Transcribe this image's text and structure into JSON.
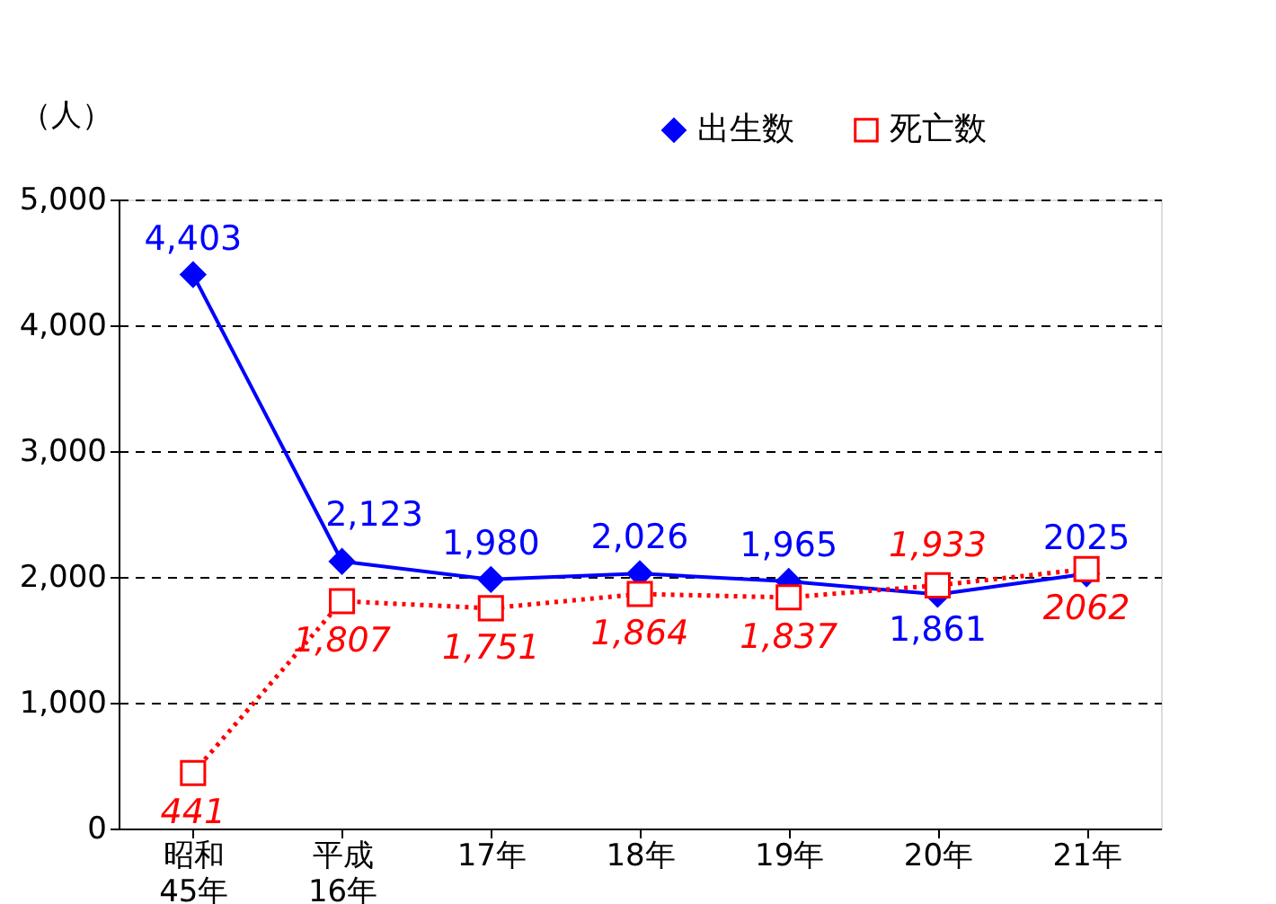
{
  "chart_data": {
    "type": "line",
    "ylabel": "（人）",
    "categories": [
      "昭和\n45年",
      "平成\n16年",
      "17年",
      "18年",
      "19年",
      "20年",
      "21年"
    ],
    "series": [
      {
        "name": "出生数",
        "color": "#0000ff",
        "marker": "diamond",
        "line_style": "solid",
        "values": [
          4403,
          2123,
          1980,
          2026,
          1965,
          1861,
          2025
        ],
        "value_labels": [
          "4,403",
          "2,123",
          "1,980",
          "2,026",
          "1,965",
          "1,861",
          "2025"
        ]
      },
      {
        "name": "死亡数",
        "color": "#ff0000",
        "marker": "square",
        "line_style": "dotted",
        "values": [
          441,
          1807,
          1751,
          1864,
          1837,
          1933,
          2062
        ],
        "value_labels": [
          "441",
          "1,807",
          "1,751",
          "1,864",
          "1,837",
          "1,933",
          "2062"
        ]
      }
    ],
    "ylim": [
      0,
      5000
    ],
    "yticks": [
      0,
      {
        "value": 1000,
        "label": "1,000"
      },
      {
        "value": 2000,
        "label": "2,000"
      },
      {
        "value": 3000,
        "label": "3,000"
      },
      {
        "value": 4000,
        "label": "4,000"
      },
      {
        "value": 5000,
        "label": "5,000"
      }
    ],
    "grid": "y",
    "legend": "top right"
  }
}
